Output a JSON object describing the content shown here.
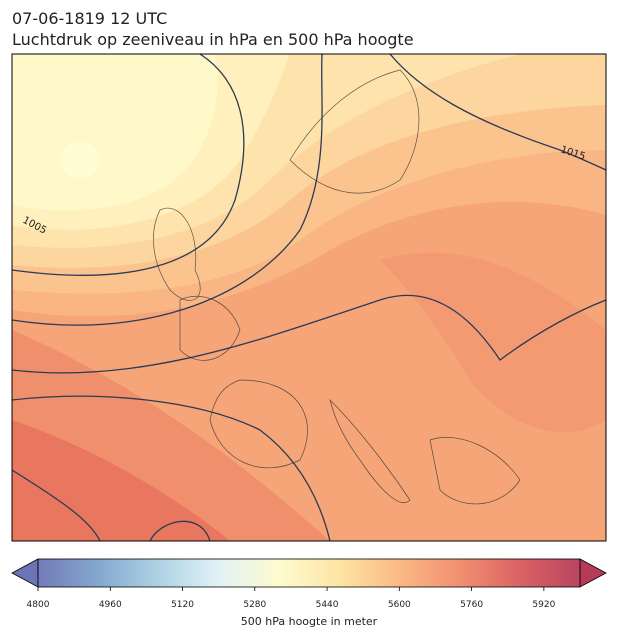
{
  "header": {
    "title": "07-06-1819 12 UTC",
    "subtitle": "Luchtdruk op zeeniveau in hPa en 500 hPa hoogte"
  },
  "isobar_labels": [
    "1005",
    "1015"
  ],
  "colorbar": {
    "label": "500 hPa hoogte in meter",
    "lim": [
      4800,
      6000
    ],
    "ticks": [
      4800,
      4960,
      5120,
      5280,
      5440,
      5600,
      5760,
      5920
    ],
    "colors": [
      "#6b74b4",
      "#7ea3cc",
      "#a9d0e3",
      "#e0f1f5",
      "#fdfbcc",
      "#fde3a0",
      "#fbb57f",
      "#f08a68",
      "#d85a5b",
      "#b53b58"
    ]
  }
}
